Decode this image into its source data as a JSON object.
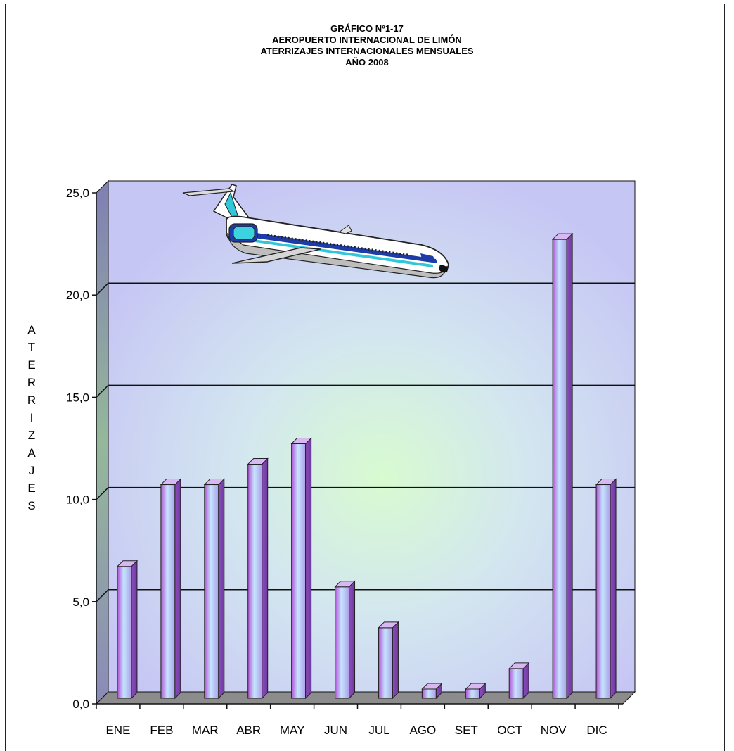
{
  "chart_data": {
    "type": "bar",
    "title_lines": [
      "GRÁFICO Nº1-17",
      "AEROPUERTO INTERNACIONAL DE LIMÓN",
      "ATERRIZAJES INTERNACIONALES MENSUALES",
      "AÑO 2008"
    ],
    "ylabel": "ATERRIZAJES",
    "xlabel": "",
    "categories": [
      "ENE",
      "FEB",
      "MAR",
      "ABR",
      "MAY",
      "JUN",
      "JUL",
      "AGO",
      "SET",
      "OCT",
      "NOV",
      "DIC"
    ],
    "values": [
      7,
      11,
      11,
      12,
      13,
      6,
      4,
      1,
      1,
      2,
      23,
      11
    ],
    "yticks": [
      "0,0",
      "5,0",
      "10,0",
      "15,0",
      "20,0",
      "25,0"
    ],
    "ylim": [
      0,
      25
    ],
    "grid": true,
    "style": "3d-column",
    "decoration": "airplane-icon",
    "colors": {
      "bar_light": "#b8d8ff",
      "bar_dark": "#9a55d0",
      "wall": "#c8c8f4",
      "floor": "#8c8c8c"
    }
  }
}
